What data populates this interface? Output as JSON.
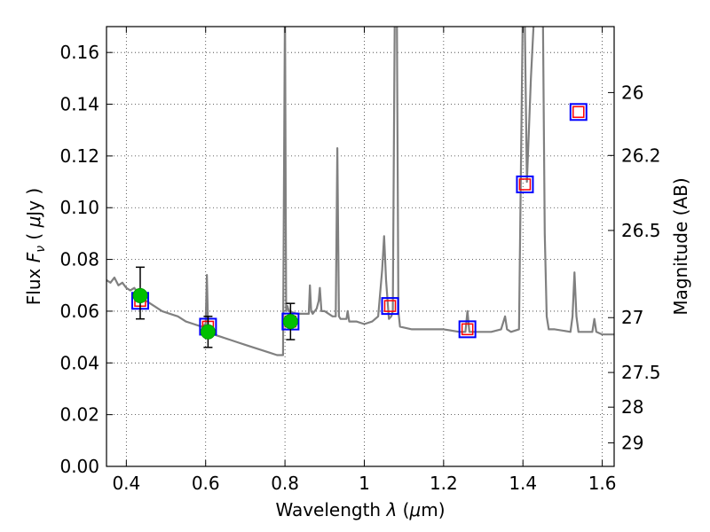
{
  "chart_data": {
    "type": "scatter",
    "xlabel": "Wavelength  λ (μm)",
    "ylabel_left": "Flux  Fν  ( μJy )",
    "ylabel_right": "Magnitude (AB)",
    "xlim": [
      0.35,
      1.63
    ],
    "ylim": [
      0.0,
      0.17
    ],
    "xticks": [
      0.4,
      0.6,
      0.8,
      1.0,
      1.2,
      1.4,
      1.6
    ],
    "xtick_labels": [
      "0.4",
      "0.6",
      "0.8",
      "1",
      "1.2",
      "1.4",
      "1.6"
    ],
    "yticks": [
      0.0,
      0.02,
      0.04,
      0.06,
      0.08,
      0.1,
      0.12,
      0.14,
      0.16
    ],
    "ytick_labels": [
      "0.00",
      "0.02",
      "0.04",
      "0.06",
      "0.08",
      "0.10",
      "0.12",
      "0.14",
      "0.16"
    ],
    "right_ticks": [
      {
        "flux": 0.1445,
        "label": "26"
      },
      {
        "flux": 0.1202,
        "label": "26.2"
      },
      {
        "flux": 0.0912,
        "label": "26.5"
      },
      {
        "flux": 0.0575,
        "label": "27"
      },
      {
        "flux": 0.0363,
        "label": "27.5"
      },
      {
        "flux": 0.0229,
        "label": "28"
      },
      {
        "flux": 0.0091,
        "label": "29"
      }
    ],
    "grid": true,
    "colors": {
      "spectrum": "#808080",
      "observed": "#00c000",
      "model_blue": "#0000ff",
      "model_red": "#ff0000",
      "errorbar": "#000000"
    },
    "series": [
      {
        "kind": "observed",
        "marker": "circle",
        "points": [
          {
            "x": 0.435,
            "y": 0.066,
            "yerr": [
              0.057,
              0.077
            ]
          },
          {
            "x": 0.606,
            "y": 0.052,
            "yerr": [
              0.046,
              0.058
            ]
          },
          {
            "x": 0.814,
            "y": 0.056,
            "yerr": [
              0.049,
              0.063
            ]
          }
        ]
      },
      {
        "kind": "model_bandpass",
        "marker": "square",
        "points": [
          {
            "x": 0.435,
            "y": 0.064
          },
          {
            "x": 0.606,
            "y": 0.054
          },
          {
            "x": 0.814,
            "y": 0.056
          },
          {
            "x": 1.065,
            "y": 0.062
          },
          {
            "x": 1.26,
            "y": 0.053
          },
          {
            "x": 1.405,
            "y": 0.109
          },
          {
            "x": 1.54,
            "y": 0.137
          }
        ]
      },
      {
        "kind": "template_spectrum",
        "line": true,
        "x": [
          0.35,
          0.36,
          0.37,
          0.38,
          0.39,
          0.4,
          0.41,
          0.42,
          0.43,
          0.44,
          0.45,
          0.47,
          0.49,
          0.51,
          0.53,
          0.55,
          0.57,
          0.59,
          0.6,
          0.603,
          0.606,
          0.609,
          0.62,
          0.64,
          0.66,
          0.68,
          0.7,
          0.72,
          0.74,
          0.76,
          0.78,
          0.795,
          0.8,
          0.803,
          0.806,
          0.81,
          0.83,
          0.85,
          0.86,
          0.863,
          0.866,
          0.87,
          0.88,
          0.885,
          0.888,
          0.892,
          0.9,
          0.92,
          0.928,
          0.932,
          0.936,
          0.94,
          0.955,
          0.958,
          0.962,
          0.98,
          1.0,
          1.02,
          1.035,
          1.045,
          1.05,
          1.055,
          1.062,
          1.068,
          1.072,
          1.077,
          1.082,
          1.086,
          1.09,
          1.12,
          1.16,
          1.2,
          1.24,
          1.255,
          1.26,
          1.265,
          1.28,
          1.32,
          1.345,
          1.355,
          1.36,
          1.37,
          1.39,
          1.4,
          1.404,
          1.41,
          1.42,
          1.43,
          1.45,
          1.455,
          1.46,
          1.465,
          1.48,
          1.52,
          1.525,
          1.53,
          1.535,
          1.54,
          1.56,
          1.575,
          1.58,
          1.585,
          1.6,
          1.63
        ],
        "values": [
          0.072,
          0.071,
          0.073,
          0.07,
          0.071,
          0.069,
          0.068,
          0.069,
          0.067,
          0.066,
          0.064,
          0.062,
          0.06,
          0.059,
          0.058,
          0.056,
          0.055,
          0.054,
          0.055,
          0.074,
          0.055,
          0.052,
          0.051,
          0.05,
          0.049,
          0.048,
          0.047,
          0.046,
          0.045,
          0.044,
          0.043,
          0.043,
          0.18,
          0.06,
          0.062,
          0.06,
          0.059,
          0.059,
          0.059,
          0.07,
          0.06,
          0.059,
          0.061,
          0.064,
          0.069,
          0.06,
          0.06,
          0.058,
          0.058,
          0.123,
          0.058,
          0.057,
          0.057,
          0.06,
          0.056,
          0.056,
          0.055,
          0.056,
          0.058,
          0.076,
          0.089,
          0.072,
          0.057,
          0.058,
          0.06,
          0.18,
          0.18,
          0.06,
          0.054,
          0.053,
          0.053,
          0.053,
          0.052,
          0.052,
          0.06,
          0.052,
          0.052,
          0.052,
          0.053,
          0.058,
          0.053,
          0.052,
          0.053,
          0.18,
          0.18,
          0.11,
          0.15,
          0.18,
          0.18,
          0.09,
          0.058,
          0.053,
          0.053,
          0.052,
          0.058,
          0.075,
          0.058,
          0.052,
          0.052,
          0.052,
          0.057,
          0.052,
          0.051,
          0.051
        ]
      }
    ]
  }
}
